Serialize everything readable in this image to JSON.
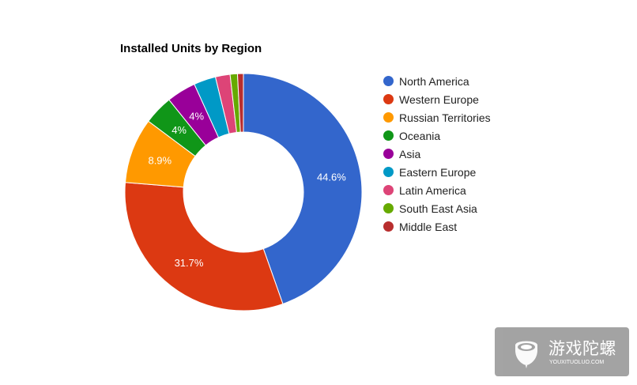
{
  "chart_data": {
    "type": "pie",
    "variant": "donut",
    "title": "Installed Units by Region",
    "legend_position": "right",
    "categories": [
      "North America",
      "Western Europe",
      "Russian Territories",
      "Oceania",
      "Asia",
      "Eastern Europe",
      "Latin America",
      "South East Asia",
      "Middle East"
    ],
    "values": [
      44.6,
      31.7,
      8.9,
      4.0,
      4.0,
      3.0,
      2.0,
      1.0,
      0.8
    ],
    "data_labels": [
      "44.6%",
      "31.7%",
      "8.9%",
      "4%",
      "4%",
      "",
      "",
      "",
      ""
    ],
    "colors": [
      "#3366cc",
      "#dc3912",
      "#ff9900",
      "#109618",
      "#990099",
      "#0099c6",
      "#dd4477",
      "#66aa00",
      "#b82e2e"
    ]
  },
  "watermark": {
    "text": "游戏陀螺",
    "subtext": "YOUXITUOLUO.COM",
    "background": "#9c9c9c"
  }
}
